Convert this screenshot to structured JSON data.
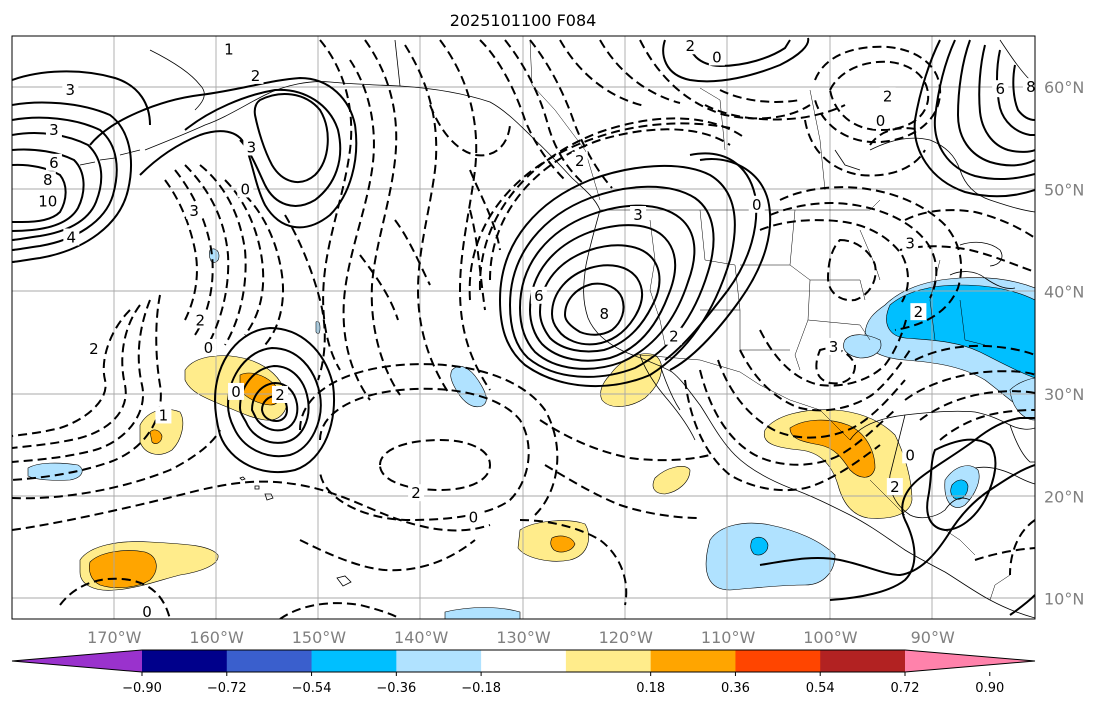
{
  "title": "2025101100 F084",
  "map": {
    "lat_labels": [
      "60°N",
      "50°N",
      "40°N",
      "30°N",
      "20°N",
      "10°N"
    ],
    "lon_labels": [
      "170°W",
      "160°W",
      "150°W",
      "140°W",
      "130°W",
      "120°W",
      "110°W",
      "100°W",
      "90°W"
    ],
    "lat_values": [
      60,
      50,
      40,
      30,
      20,
      10
    ],
    "lon_values": [
      -170,
      -160,
      -150,
      -140,
      -130,
      -120,
      -110,
      -100,
      -90
    ],
    "extent": {
      "lon_min": -180,
      "lon_max": -80,
      "lat_min": 8,
      "lat_max": 65
    }
  },
  "colorbar": {
    "tick_labels": [
      "−0.90",
      "−0.72",
      "−0.54",
      "−0.36",
      "−0.18",
      "0.18",
      "0.36",
      "0.54",
      "0.72",
      "0.90"
    ],
    "colors": [
      "#9a32cd",
      "#00008b",
      "#3a5fcd",
      "#00bfff",
      "#b0e2ff",
      "#ffffff",
      "#ffec8b",
      "#ffa500",
      "#ff4500",
      "#b22222",
      "#ff82ab"
    ]
  },
  "contour_labels": [
    {
      "text": "1",
      "lon": -158.8,
      "lat": 63.7
    },
    {
      "text": "2",
      "lon": -156.2,
      "lat": 61.1
    },
    {
      "text": "3",
      "lon": -174.3,
      "lat": 59.7
    },
    {
      "text": "3",
      "lon": -175.9,
      "lat": 55.8
    },
    {
      "text": "6",
      "lon": -175.9,
      "lat": 52.6
    },
    {
      "text": "8",
      "lon": -176.5,
      "lat": 50.9
    },
    {
      "text": "10",
      "lon": -176.5,
      "lat": 48.8
    },
    {
      "text": "4",
      "lon": -174.2,
      "lat": 45.3
    },
    {
      "text": "3",
      "lon": -156.6,
      "lat": 54.1
    },
    {
      "text": "0",
      "lon": -157.2,
      "lat": 50.0
    },
    {
      "text": "3",
      "lon": -162.2,
      "lat": 47.9
    },
    {
      "text": "2",
      "lon": -161.6,
      "lat": 37.2
    },
    {
      "text": "0",
      "lon": -160.8,
      "lat": 34.5
    },
    {
      "text": "2",
      "lon": -172.0,
      "lat": 34.4
    },
    {
      "text": "1",
      "lon": -165.2,
      "lat": 27.9
    },
    {
      "text": "2",
      "lon": -153.8,
      "lat": 29.9
    },
    {
      "text": "0",
      "lon": -158.1,
      "lat": 30.2
    },
    {
      "text": "2",
      "lon": -140.5,
      "lat": 20.3
    },
    {
      "text": "0",
      "lon": -134.9,
      "lat": 17.9
    },
    {
      "text": "2",
      "lon": -124.5,
      "lat": 52.8
    },
    {
      "text": "3",
      "lon": -118.8,
      "lat": 47.5
    },
    {
      "text": "6",
      "lon": -128.5,
      "lat": 39.6
    },
    {
      "text": "8",
      "lon": -122.1,
      "lat": 37.8
    },
    {
      "text": "0",
      "lon": -107.2,
      "lat": 48.5
    },
    {
      "text": "2",
      "lon": -115.3,
      "lat": 35.6
    },
    {
      "text": "3",
      "lon": -99.7,
      "lat": 34.6
    },
    {
      "text": "3",
      "lon": -92.2,
      "lat": 44.7
    },
    {
      "text": "2",
      "lon": -93.7,
      "lat": 20.9
    },
    {
      "text": "0",
      "lon": -92.2,
      "lat": 24.0
    },
    {
      "text": "2",
      "lon": -91.4,
      "lat": 38.0
    },
    {
      "text": "0",
      "lon": -95.1,
      "lat": 56.7
    },
    {
      "text": "2",
      "lon": -94.4,
      "lat": 59.1
    },
    {
      "text": "2",
      "lon": -113.7,
      "lat": 64.0
    },
    {
      "text": "0",
      "lon": -111.1,
      "lat": 62.9
    },
    {
      "text": "6",
      "lon": -83.4,
      "lat": 59.8
    },
    {
      "text": "8",
      "lon": -80.4,
      "lat": 60.0
    },
    {
      "text": "0",
      "lon": -166.8,
      "lat": 8.7
    }
  ]
}
